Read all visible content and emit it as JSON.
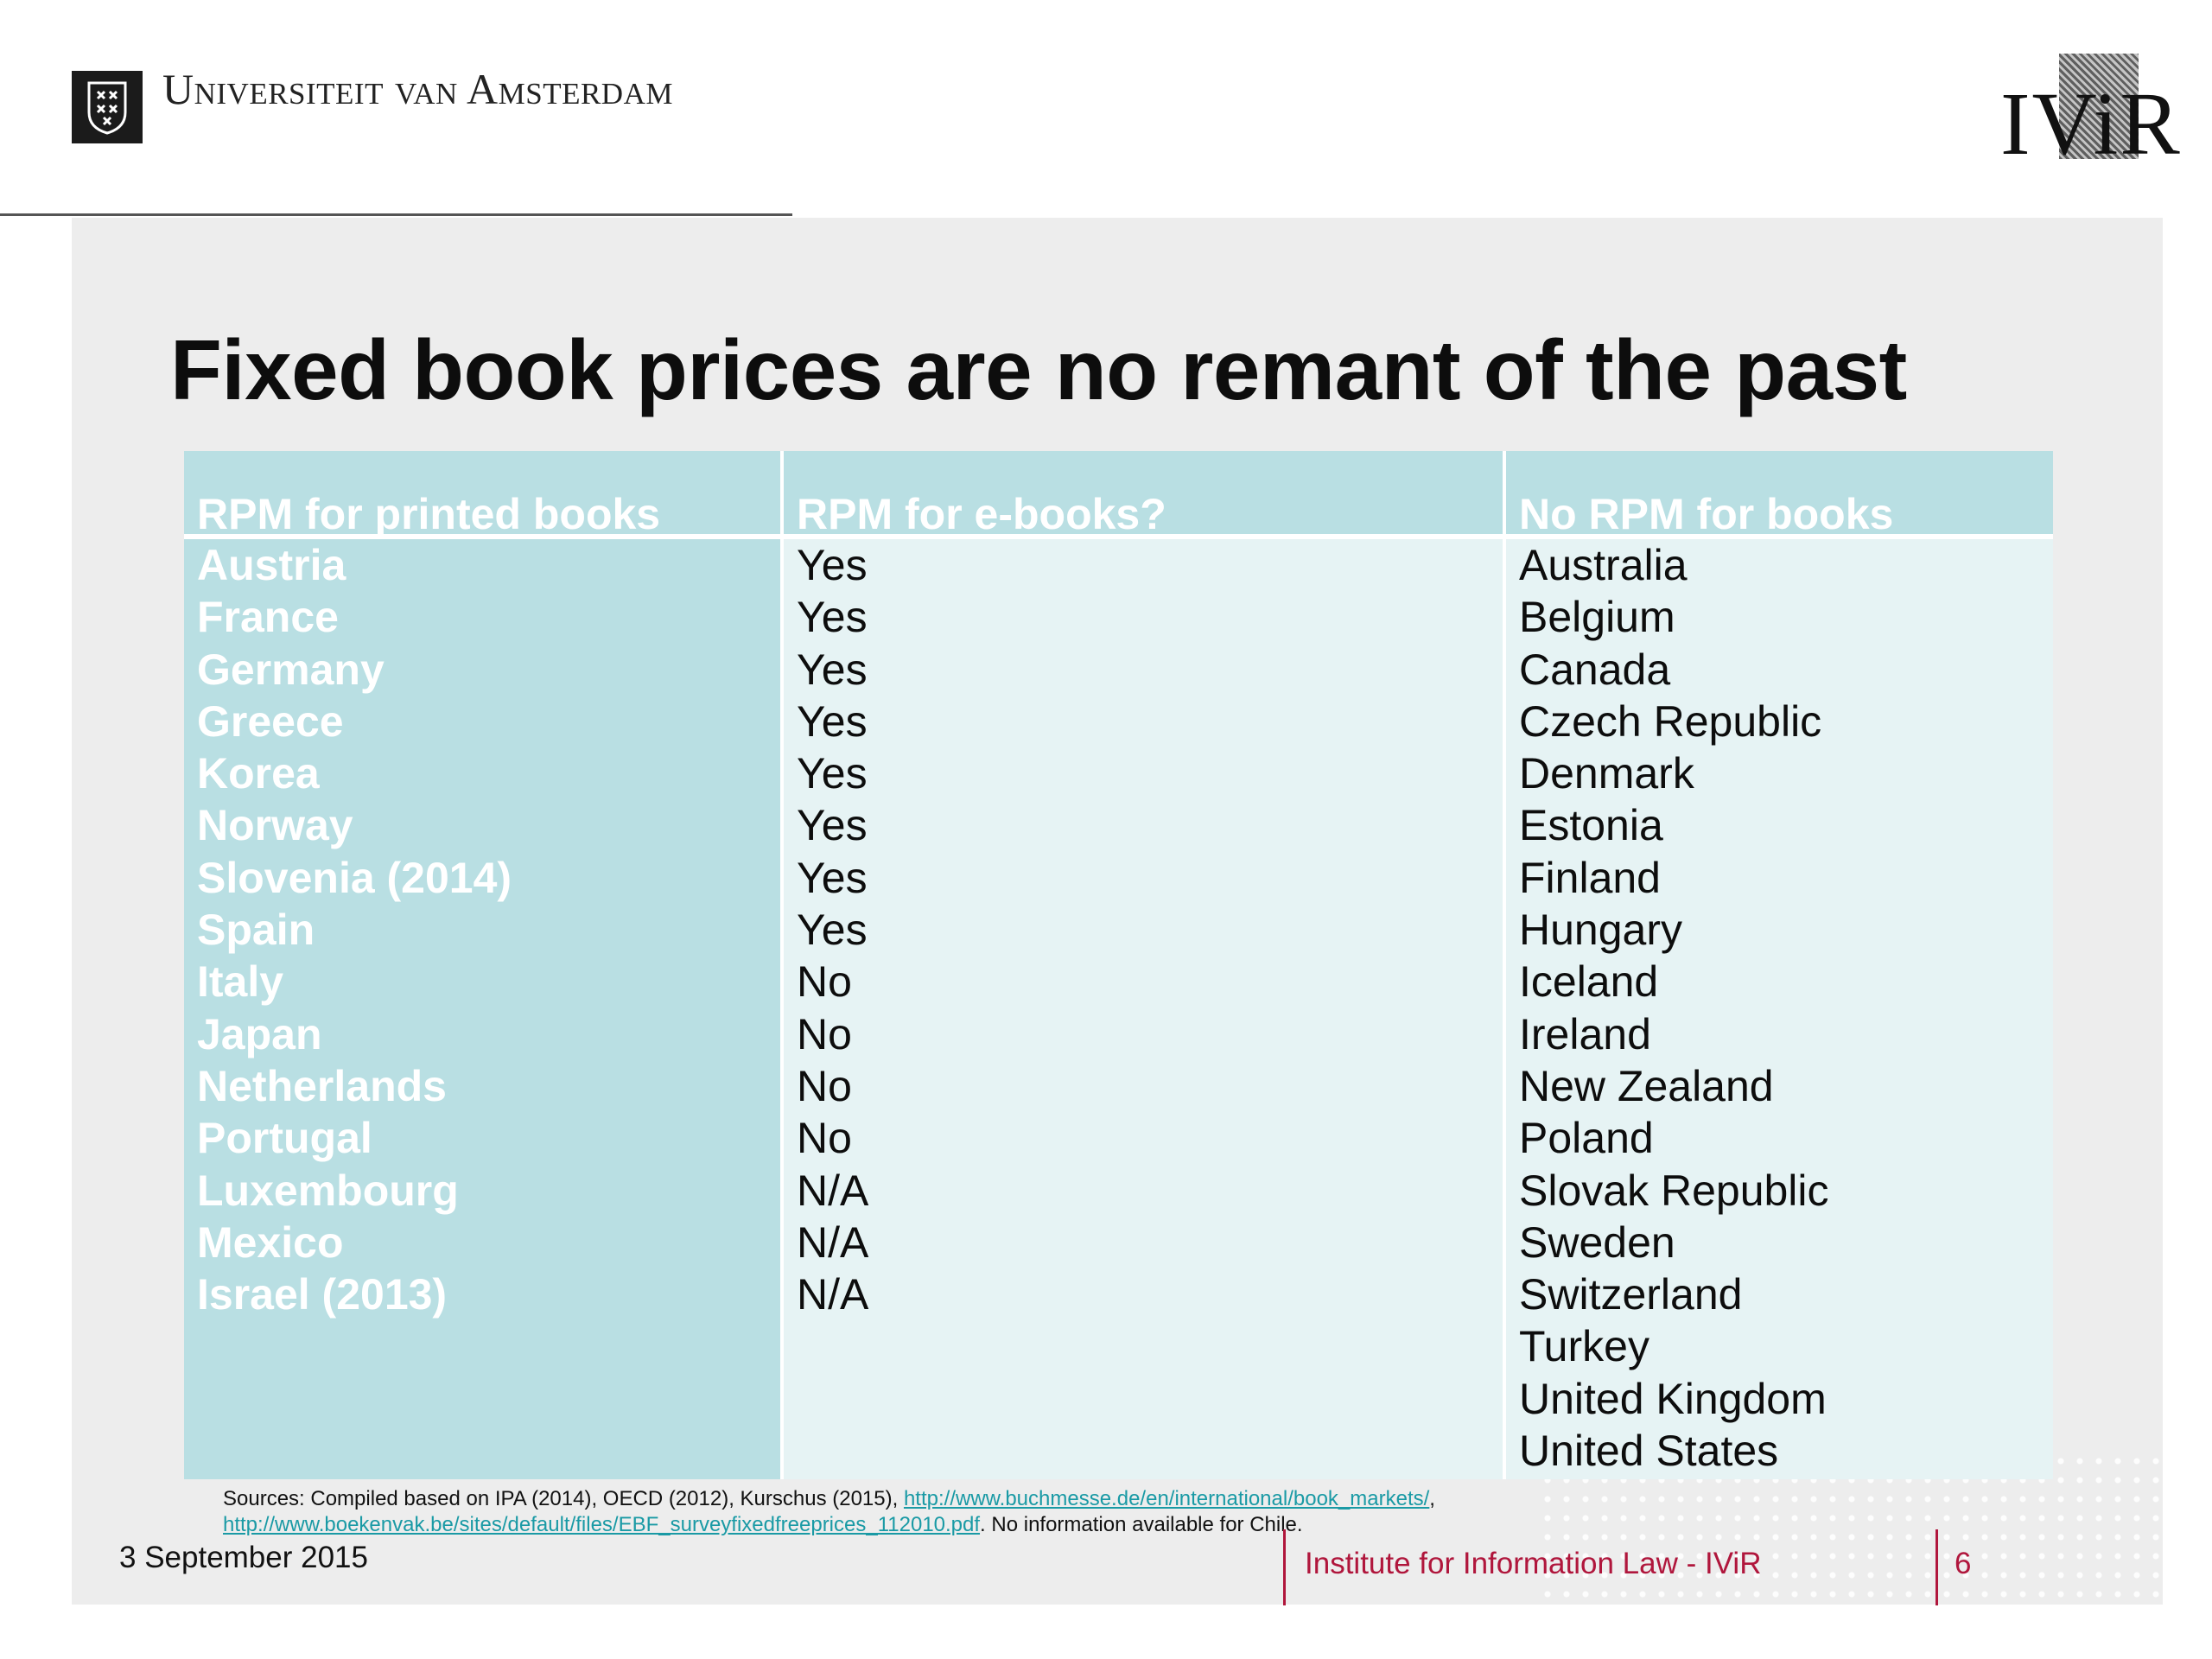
{
  "header": {
    "university_name": "Universiteit van Amsterdam",
    "right_logo_text": "IViR"
  },
  "slide": {
    "title": "Fixed book prices are no remant of the past",
    "table": {
      "columns": [
        {
          "header": "RPM for printed books",
          "rows": [
            "Austria",
            "France",
            "Germany",
            "Greece",
            "Korea",
            "Norway",
            "Slovenia (2014)",
            "Spain",
            "Italy",
            "Japan",
            "Netherlands",
            "Portugal",
            "Luxembourg",
            "Mexico",
            "Israel (2013)"
          ]
        },
        {
          "header": "RPM for e-books?",
          "rows": [
            "Yes",
            "Yes",
            "Yes",
            "Yes",
            "Yes",
            "Yes",
            "Yes",
            "Yes",
            "No",
            "No",
            "No",
            "No",
            "N/A",
            "N/A",
            "N/A"
          ]
        },
        {
          "header": "No RPM for books",
          "rows": [
            "Australia",
            "Belgium",
            "Canada",
            "Czech Republic",
            "Denmark",
            "Estonia",
            "Finland",
            "Hungary",
            "Iceland",
            "Ireland",
            "New Zealand",
            "Poland",
            "Slovak Republic",
            "Sweden",
            "Switzerland",
            "Turkey",
            "United Kingdom",
            "United States"
          ]
        }
      ]
    },
    "sources": {
      "line1_prefix": "Sources: Compiled based on IPA (2014), OECD (2012), Kurschus (2015), ",
      "link1": "http://www.buchmesse.de/en/international/book_markets/",
      "line1_suffix": ",",
      "link2": "http://www.boekenvak.be/sites/default/files/EBF_surveyfixedfreeprices_112010.pdf",
      "line2_suffix": ". No information available for Chile."
    }
  },
  "footer": {
    "date": "3 September 2015",
    "institute": "Institute for Information Law - IViR",
    "page_number": "6"
  }
}
